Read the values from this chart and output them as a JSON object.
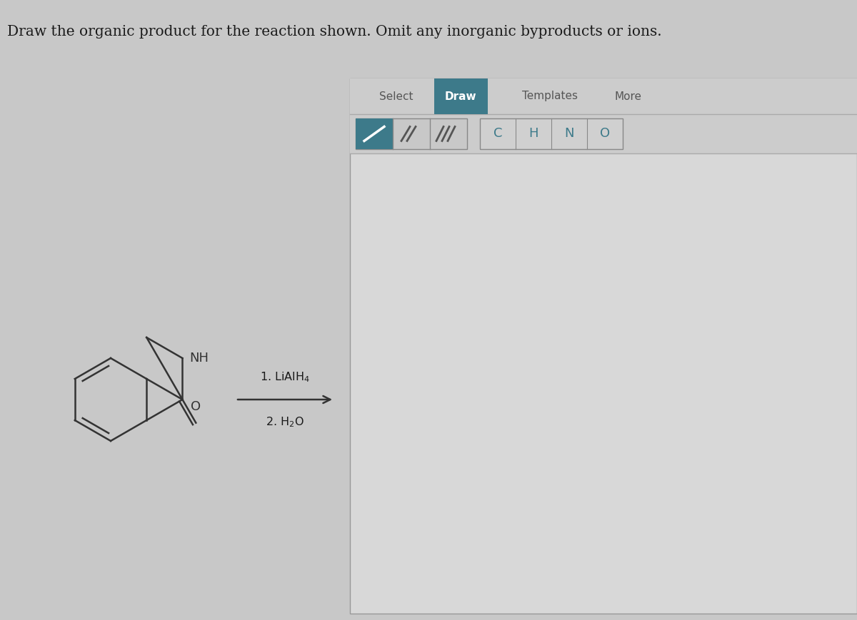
{
  "bg_color": "#c8c8c8",
  "left_bg": "#c8c8c8",
  "right_panel_bg": "#d8d8d8",
  "toolbar_bg": "#cccccc",
  "draw_btn_color": "#3d7a8a",
  "draw_btn_text": "#ffffff",
  "bond_icon_active_color": "#3d7a8a",
  "bond_icon_inactive_color": "#aaaaaa",
  "atom_btn_bg": "#d0d0d0",
  "atom_btn_text": "#3d7a8a",
  "toolbar_text_color": "#555555",
  "bond_color": "#333333",
  "title_text": "Draw the organic product for the reaction shown. Omit any inorganic byproducts or ions.",
  "title_fontsize": 14.5,
  "title_color": "#1a1a1a",
  "reagent1": "1. LiAlH",
  "reagent1_sub": "4",
  "reagent2": "2. H",
  "reagent2_sub": "2",
  "reagent2_end": "O",
  "label_O": "O",
  "label_NH": "NH",
  "arrow_color": "#333333",
  "separator_color": "#aaaaaa",
  "panel_border_color": "#999999"
}
